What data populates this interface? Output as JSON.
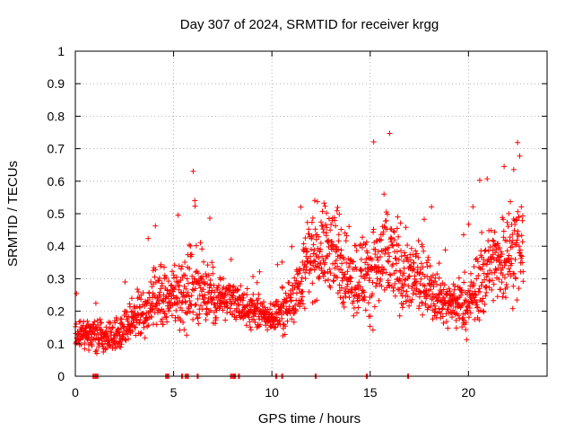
{
  "chart_data": {
    "type": "scatter",
    "title": "Day 307 of 2024, SRMTID for receiver krgg",
    "xlabel": "GPS time / hours",
    "ylabel": "SRMTID / TECUs",
    "xlim": [
      0,
      24
    ],
    "ylim": [
      0,
      1
    ],
    "xticks": [
      0,
      5,
      10,
      15,
      20
    ],
    "yticks": [
      0,
      0.1,
      0.2,
      0.3,
      0.4,
      0.5,
      0.6,
      0.7,
      0.8,
      0.9,
      1
    ],
    "xtick_labels": [
      "0",
      "5",
      "10",
      "15",
      "20"
    ],
    "ytick_labels": [
      "0",
      "0.1",
      "0.2",
      "0.3",
      "0.4",
      "0.5",
      "0.6",
      "0.7",
      "0.8",
      "0.9",
      "1"
    ],
    "grid": true,
    "marker": "+",
    "color": "#ff0000",
    "series": [
      {
        "name": "SRMTID",
        "envelope": {
          "hours": [
            0,
            1,
            2,
            3,
            4,
            5,
            6,
            7,
            8,
            9,
            10,
            11,
            12,
            13,
            14,
            15,
            16,
            17,
            18,
            19,
            20,
            21,
            22,
            22.8
          ],
          "center": [
            0.14,
            0.13,
            0.12,
            0.18,
            0.24,
            0.25,
            0.28,
            0.25,
            0.23,
            0.2,
            0.18,
            0.23,
            0.38,
            0.4,
            0.3,
            0.32,
            0.36,
            0.3,
            0.28,
            0.22,
            0.22,
            0.34,
            0.38,
            0.4
          ],
          "spread": [
            0.05,
            0.05,
            0.05,
            0.08,
            0.09,
            0.1,
            0.14,
            0.1,
            0.07,
            0.05,
            0.05,
            0.08,
            0.14,
            0.15,
            0.12,
            0.16,
            0.16,
            0.12,
            0.1,
            0.07,
            0.1,
            0.14,
            0.16,
            0.14
          ]
        },
        "zero_value_hours": [
          0.9,
          1.0,
          1.1,
          4.6,
          4.7,
          5.4,
          5.6,
          5.7,
          6.2,
          7.9,
          8.0,
          8.1,
          8.3,
          10.2,
          10.5,
          12.2,
          14.8,
          16.9
        ]
      }
    ]
  }
}
